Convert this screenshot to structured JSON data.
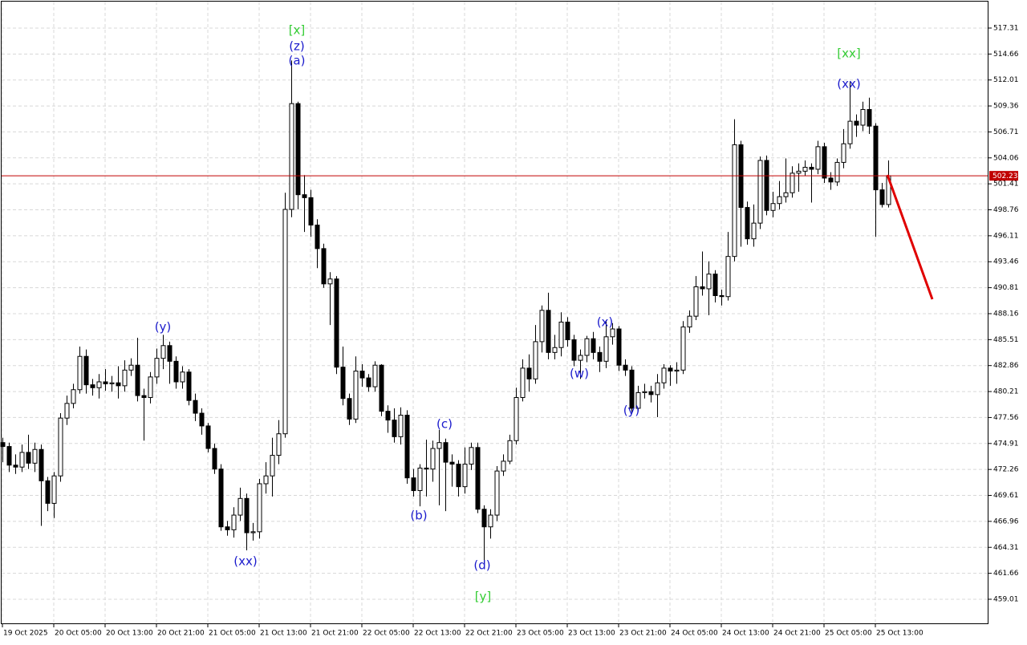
{
  "chart_data": {
    "type": "candlestick",
    "categories": [
      "19 Oct 2025",
      null,
      null,
      null,
      null,
      null,
      null,
      null,
      "20 Oct 05:00",
      null,
      null,
      null,
      null,
      null,
      null,
      null,
      "20 Oct 13:00",
      null,
      null,
      null,
      null,
      null,
      null,
      null,
      "20 Oct 21:00",
      null,
      null,
      null,
      null,
      null,
      null,
      null,
      "21 Oct 05:00",
      null,
      null,
      null,
      null,
      null,
      null,
      null,
      "21 Oct 13:00",
      null,
      null,
      null,
      null,
      null,
      null,
      null,
      "21 Oct 21:00",
      null,
      null,
      null,
      null,
      null,
      null,
      null,
      "22 Oct 05:00",
      null,
      null,
      null,
      null,
      null,
      null,
      null,
      "22 Oct 13:00",
      null,
      null,
      null,
      null,
      null,
      null,
      null,
      "22 Oct 21:00",
      null,
      null,
      null,
      null,
      null,
      null,
      null,
      "23 Oct 05:00",
      null,
      null,
      null,
      null,
      null,
      null,
      null,
      "23 Oct 13:00",
      null,
      null,
      null,
      null,
      null,
      null,
      null,
      "23 Oct 21:00",
      null,
      null,
      null,
      null,
      null,
      null,
      null,
      "24 Oct 05:00",
      null,
      null,
      null,
      null,
      null,
      null,
      null,
      "24 Oct 13:00",
      null,
      null,
      null,
      null,
      null,
      null,
      null,
      "24 Oct 21:00",
      null,
      null,
      null,
      null,
      null,
      null,
      null,
      "25 Oct 05:00",
      null,
      null,
      null,
      null,
      null,
      null,
      null,
      "25 Oct 13:00",
      null,
      null
    ],
    "open": [
      475.0,
      474.6,
      472.7,
      472.5,
      474.0,
      472.9,
      474.3,
      471.1,
      468.8,
      471.6,
      477.5,
      479.0,
      480.4,
      483.8,
      480.9,
      480.6,
      481.2,
      481.0,
      481.1,
      480.8,
      482.4,
      482.9,
      479.8,
      479.6,
      481.7,
      483.6,
      484.9,
      483.3,
      481.2,
      482.2,
      479.3,
      478.0,
      476.7,
      474.4,
      472.3,
      466.4,
      466.1,
      467.6,
      469.3,
      465.8,
      465.9,
      470.8,
      471.6,
      473.7,
      475.9,
      498.8,
      509.6,
      500.3,
      500.0,
      497.2,
      494.8,
      491.2,
      491.7,
      482.7,
      479.5,
      477.4,
      482.3,
      481.6,
      480.7,
      482.9,
      478.2,
      477.3,
      475.6,
      477.8,
      471.4,
      470.1,
      472.4,
      472.3,
      474.4,
      475.0,
      473.0,
      472.8,
      470.5,
      472.8,
      474.5,
      468.2,
      466.4,
      467.6,
      472.1,
      473.1,
      475.2,
      479.6,
      482.6,
      481.5,
      485.3,
      488.5,
      484.2,
      484.7,
      487.3,
      485.5,
      483.4,
      483.9,
      485.6,
      484.2,
      483.3,
      485.8,
      486.6,
      482.9,
      482.4,
      478.5,
      480.1,
      480.2,
      479.9,
      481.1,
      482.6,
      482.3,
      482.4,
      486.8,
      487.9,
      490.9,
      490.7,
      492.2,
      490.0,
      489.9,
      494.0,
      505.4,
      499.0,
      495.8,
      497.4,
      503.8,
      498.7,
      499.4,
      500.1,
      500.5,
      502.5,
      502.7,
      503.1,
      502.9,
      505.2,
      502.0,
      501.6,
      503.6,
      505.5,
      507.8,
      507.4,
      509.0,
      507.3,
      500.8,
      499.3
    ],
    "high": [
      475.5,
      475.0,
      473.8,
      474.8,
      475.8,
      475.0,
      474.8,
      471.5,
      472.0,
      478.0,
      479.8,
      481.0,
      484.8,
      484.5,
      481.5,
      482.0,
      482.5,
      481.8,
      482.8,
      483.4,
      483.6,
      485.7,
      480.5,
      482.2,
      484.6,
      486.0,
      485.3,
      483.8,
      482.8,
      482.5,
      480.0,
      478.5,
      477.0,
      474.9,
      472.8,
      467.0,
      468.4,
      470.4,
      469.8,
      466.8,
      471.3,
      473.0,
      475.5,
      477.3,
      500.5,
      514.0,
      509.8,
      502.3,
      500.8,
      497.8,
      495.3,
      492.4,
      492.0,
      484.8,
      480.0,
      483.8,
      483.0,
      482.0,
      483.3,
      483.0,
      478.8,
      478.5,
      478.6,
      478.3,
      472.3,
      472.8,
      475.3,
      475.2,
      476.3,
      475.4,
      473.8,
      473.2,
      474.5,
      475.0,
      475.0,
      468.6,
      468.2,
      472.6,
      473.8,
      475.8,
      480.6,
      483.5,
      484.0,
      487.0,
      489.0,
      490.3,
      486.0,
      488.3,
      487.8,
      486.0,
      484.5,
      485.9,
      486.3,
      484.8,
      487.5,
      487.2,
      486.9,
      483.5,
      482.8,
      480.8,
      481.0,
      480.8,
      482.0,
      483.0,
      482.9,
      483.2,
      487.4,
      488.5,
      492.0,
      494.5,
      493.5,
      492.6,
      490.6,
      496.5,
      508.0,
      505.8,
      499.6,
      499.3,
      504.2,
      504.3,
      500.6,
      501.7,
      504.0,
      503.2,
      503.5,
      503.8,
      503.5,
      505.8,
      505.6,
      502.6,
      504.0,
      507.0,
      511.8,
      508.5,
      509.8,
      510.2,
      507.6,
      501.5,
      503.8
    ],
    "low": [
      473.0,
      472.0,
      471.8,
      472.0,
      472.3,
      472.0,
      466.5,
      468.0,
      467.3,
      471.0,
      476.8,
      478.5,
      480.0,
      480.0,
      479.8,
      479.5,
      480.3,
      480.2,
      479.5,
      480.2,
      481.8,
      479.2,
      475.2,
      479.0,
      481.0,
      482.5,
      481.0,
      480.5,
      480.5,
      478.8,
      477.2,
      475.8,
      474.0,
      471.8,
      466.0,
      465.5,
      465.3,
      467.0,
      464.0,
      465.0,
      465.2,
      469.8,
      469.5,
      472.8,
      475.5,
      498.0,
      498.8,
      496.5,
      496.0,
      492.8,
      490.8,
      487.0,
      482.0,
      478.8,
      476.8,
      477.0,
      480.7,
      480.2,
      480.2,
      477.7,
      476.0,
      475.0,
      474.8,
      470.8,
      469.5,
      468.5,
      469.5,
      471.0,
      468.6,
      468.0,
      470.5,
      469.5,
      469.8,
      472.2,
      467.8,
      462.6,
      465.2,
      467.0,
      471.6,
      472.8,
      474.8,
      479.2,
      480.2,
      481.0,
      484.2,
      483.5,
      483.5,
      483.8,
      484.8,
      482.8,
      481.5,
      483.2,
      483.5,
      482.2,
      482.6,
      485.0,
      482.3,
      481.8,
      478.0,
      478.2,
      479.5,
      479.1,
      477.6,
      480.5,
      480.8,
      481.0,
      482.0,
      486.2,
      487.5,
      490.0,
      488.0,
      489.3,
      489.0,
      489.5,
      493.5,
      495.0,
      495.2,
      495.0,
      496.8,
      498.2,
      498.0,
      498.8,
      499.5,
      500.0,
      500.6,
      502.2,
      499.5,
      502.4,
      501.5,
      500.8,
      501.2,
      503.0,
      505.0,
      506.2,
      506.8,
      506.5,
      496.0,
      499.0,
      499.0
    ],
    "close": [
      474.6,
      472.7,
      472.5,
      474.0,
      472.9,
      474.3,
      471.1,
      468.8,
      471.6,
      477.5,
      479.0,
      480.4,
      483.8,
      480.9,
      480.6,
      481.2,
      481.0,
      481.1,
      480.8,
      482.4,
      482.9,
      479.8,
      479.6,
      481.7,
      483.6,
      484.9,
      483.3,
      481.2,
      482.2,
      479.3,
      478.0,
      476.7,
      474.4,
      472.3,
      466.4,
      466.1,
      467.6,
      469.3,
      465.8,
      465.9,
      470.8,
      471.6,
      473.7,
      475.9,
      498.8,
      509.6,
      500.3,
      500.0,
      497.2,
      494.8,
      491.2,
      491.7,
      482.7,
      479.5,
      477.4,
      482.3,
      481.6,
      480.7,
      482.9,
      478.2,
      477.3,
      475.6,
      477.8,
      471.4,
      470.1,
      472.4,
      472.3,
      474.4,
      475.0,
      473.0,
      472.8,
      470.5,
      472.8,
      474.5,
      468.2,
      466.4,
      467.6,
      472.1,
      473.1,
      475.2,
      479.6,
      482.6,
      481.5,
      485.3,
      488.5,
      484.2,
      484.7,
      487.3,
      485.5,
      483.4,
      483.9,
      485.6,
      484.2,
      483.3,
      485.8,
      486.6,
      482.9,
      482.4,
      478.5,
      480.1,
      480.2,
      479.9,
      481.1,
      482.6,
      482.3,
      482.4,
      486.8,
      487.9,
      490.9,
      490.7,
      492.2,
      490.0,
      489.9,
      494.0,
      505.4,
      499.0,
      495.8,
      497.4,
      503.8,
      498.7,
      499.4,
      500.1,
      500.5,
      502.5,
      502.7,
      503.1,
      502.9,
      505.2,
      502.0,
      501.6,
      503.6,
      505.5,
      507.8,
      507.4,
      509.0,
      507.3,
      500.8,
      499.3,
      502.23
    ],
    "up_color": "#ffffff",
    "down_color": "#000000",
    "outline_color": "#000000",
    "ylim": [
      456.47,
      520.01
    ],
    "yticks": [
      517.31,
      514.66,
      512.01,
      509.36,
      506.71,
      504.06,
      501.41,
      498.76,
      496.11,
      493.46,
      490.81,
      488.16,
      485.51,
      482.86,
      480.21,
      477.56,
      474.91,
      472.26,
      469.61,
      466.96,
      464.31,
      461.66,
      459.01
    ],
    "grid": true,
    "current_price": 502.23,
    "current_price_color": "#c00000",
    "annotations": [
      {
        "text": "[x]",
        "color": "#33cc33"
      },
      {
        "text": "(z)",
        "color": "#1a1acc"
      },
      {
        "text": "(a)",
        "color": "#1a1acc"
      },
      {
        "text": "(y)",
        "color": "#1a1acc"
      },
      {
        "text": "(xx)",
        "color": "#1a1acc"
      },
      {
        "text": "(b)",
        "color": "#1a1acc"
      },
      {
        "text": "(c)",
        "color": "#1a1acc"
      },
      {
        "text": "(d)",
        "color": "#1a1acc"
      },
      {
        "text": "[y]",
        "color": "#33cc33"
      },
      {
        "text": "(w)",
        "color": "#1a1acc"
      },
      {
        "text": "(x)",
        "color": "#1a1acc"
      },
      {
        "text": "(y)",
        "color": "#1a1acc"
      },
      {
        "text": "[xx]",
        "color": "#33cc33"
      },
      {
        "text": "(xx)",
        "color": "#1a1acc"
      }
    ]
  }
}
